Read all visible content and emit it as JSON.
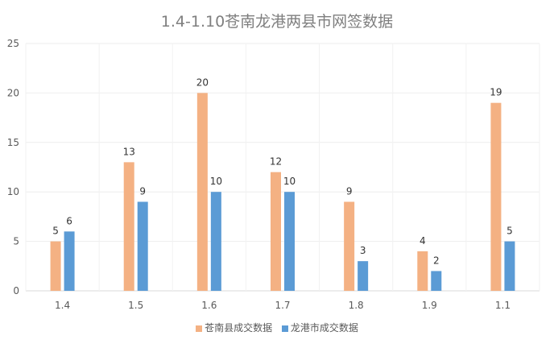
{
  "chart_data": {
    "type": "bar",
    "title": "1.4-1.10苍南龙港两县市网签数据",
    "categories": [
      "1.4",
      "1.5",
      "1.6",
      "1.7",
      "1.8",
      "1.9",
      "1.1"
    ],
    "series": [
      {
        "name": "苍南县成交数据",
        "values": [
          5,
          13,
          20,
          12,
          9,
          4,
          19
        ],
        "color": "#F4B183"
      },
      {
        "name": "龙港市成交数据",
        "values": [
          6,
          9,
          10,
          10,
          3,
          2,
          5
        ],
        "color": "#5B9BD5"
      }
    ],
    "yticks": [
      "0",
      "5",
      "10",
      "15",
      "20",
      "25"
    ],
    "ylim": [
      0,
      25
    ],
    "grid": true,
    "legend": "bottom"
  }
}
